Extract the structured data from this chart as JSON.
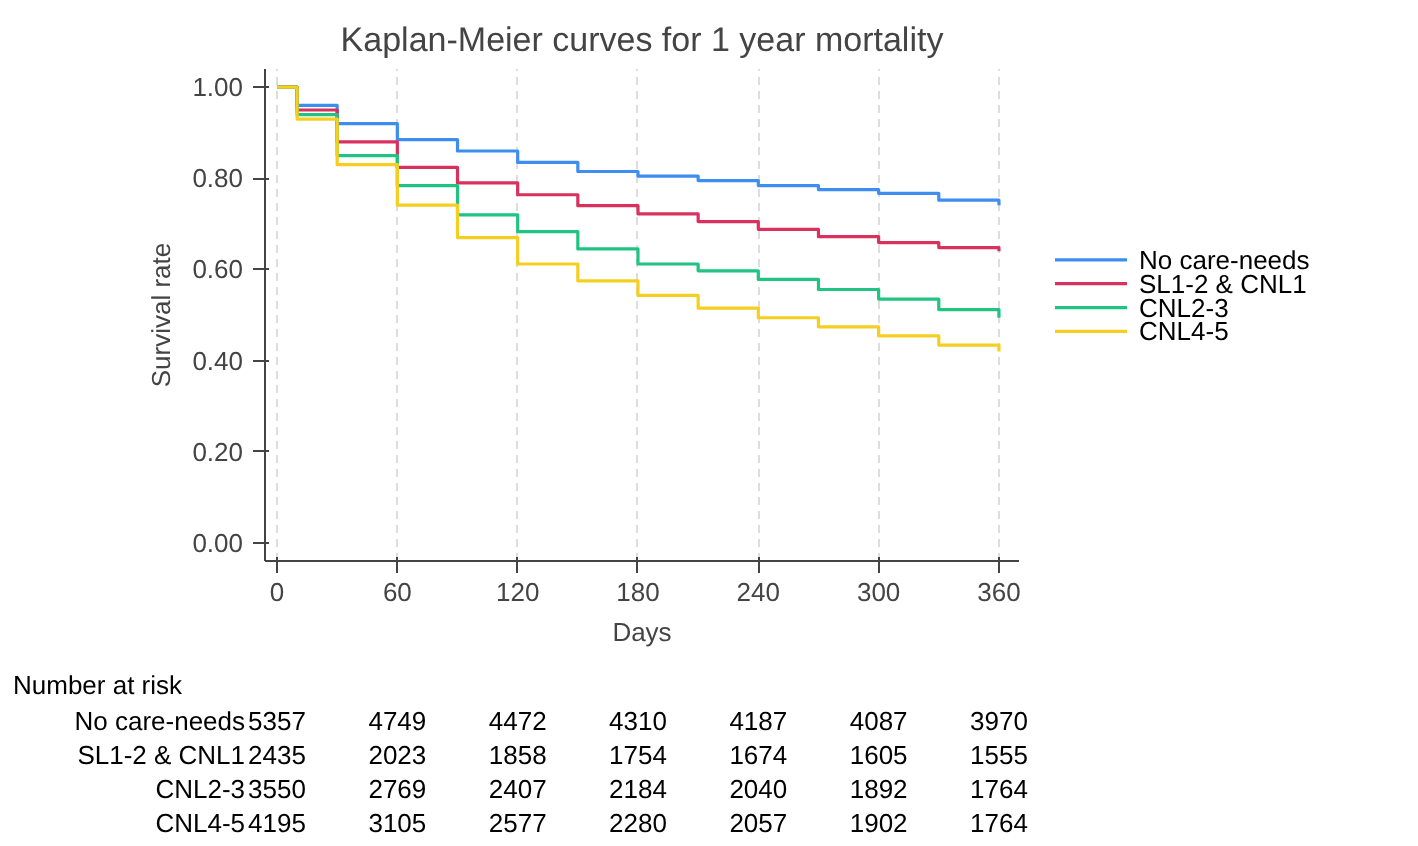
{
  "chart_data": {
    "type": "step",
    "title": "Kaplan-Meier curves for 1 year mortality",
    "xlabel": "Days",
    "ylabel": "Survival rate",
    "x": [
      0,
      10,
      30,
      60,
      90,
      120,
      150,
      180,
      210,
      240,
      270,
      300,
      330,
      360
    ],
    "series": [
      {
        "name": "No care-needs",
        "color": "#3d8ef0",
        "values": [
          1.0,
          0.96,
          0.92,
          0.885,
          0.86,
          0.835,
          0.815,
          0.805,
          0.795,
          0.784,
          0.775,
          0.767,
          0.752,
          0.741
        ]
      },
      {
        "name": "SL1-2 & CNL1",
        "color": "#d9315e",
        "values": [
          1.0,
          0.95,
          0.88,
          0.824,
          0.79,
          0.764,
          0.74,
          0.722,
          0.705,
          0.688,
          0.672,
          0.659,
          0.648,
          0.64
        ]
      },
      {
        "name": "CNL2-3",
        "color": "#21c383",
        "values": [
          1.0,
          0.94,
          0.85,
          0.784,
          0.72,
          0.683,
          0.645,
          0.612,
          0.597,
          0.578,
          0.556,
          0.535,
          0.512,
          0.494
        ]
      },
      {
        "name": "CNL4-5",
        "color": "#f5cf1f",
        "values": [
          1.0,
          0.93,
          0.83,
          0.741,
          0.67,
          0.612,
          0.575,
          0.543,
          0.515,
          0.494,
          0.474,
          0.454,
          0.434,
          0.42
        ]
      }
    ],
    "xlim": [
      -6,
      370
    ],
    "ylim": [
      -0.04,
      1.04
    ],
    "xticks": [
      0,
      60,
      120,
      180,
      240,
      300,
      360
    ],
    "yticks": [
      {
        "value": 0,
        "label": "0.00"
      },
      {
        "value": 0.2,
        "label": "0.20"
      },
      {
        "value": 0.4,
        "label": "0.40"
      },
      {
        "value": 0.6,
        "label": "0.60"
      },
      {
        "value": 0.8,
        "label": "0.80"
      },
      {
        "value": 1,
        "label": "1.00"
      }
    ],
    "grid": "x",
    "legend": "right",
    "line_style": "solid",
    "annotations": [
      "Number at risk",
      "No care-needs",
      "5357",
      "4749",
      "4472",
      "4310",
      "4187",
      "4087",
      "3970",
      "SL1-2 & CNL1",
      "2435",
      "2023",
      "1858",
      "1754",
      "1674",
      "1605",
      "1555",
      "CNL2-3",
      "3550",
      "2769",
      "2407",
      "2184",
      "2040",
      "1892",
      "1764",
      "CNL4-5",
      "4195",
      "3105",
      "2577",
      "2280",
      "2057",
      "1902",
      "1764"
    ]
  }
}
